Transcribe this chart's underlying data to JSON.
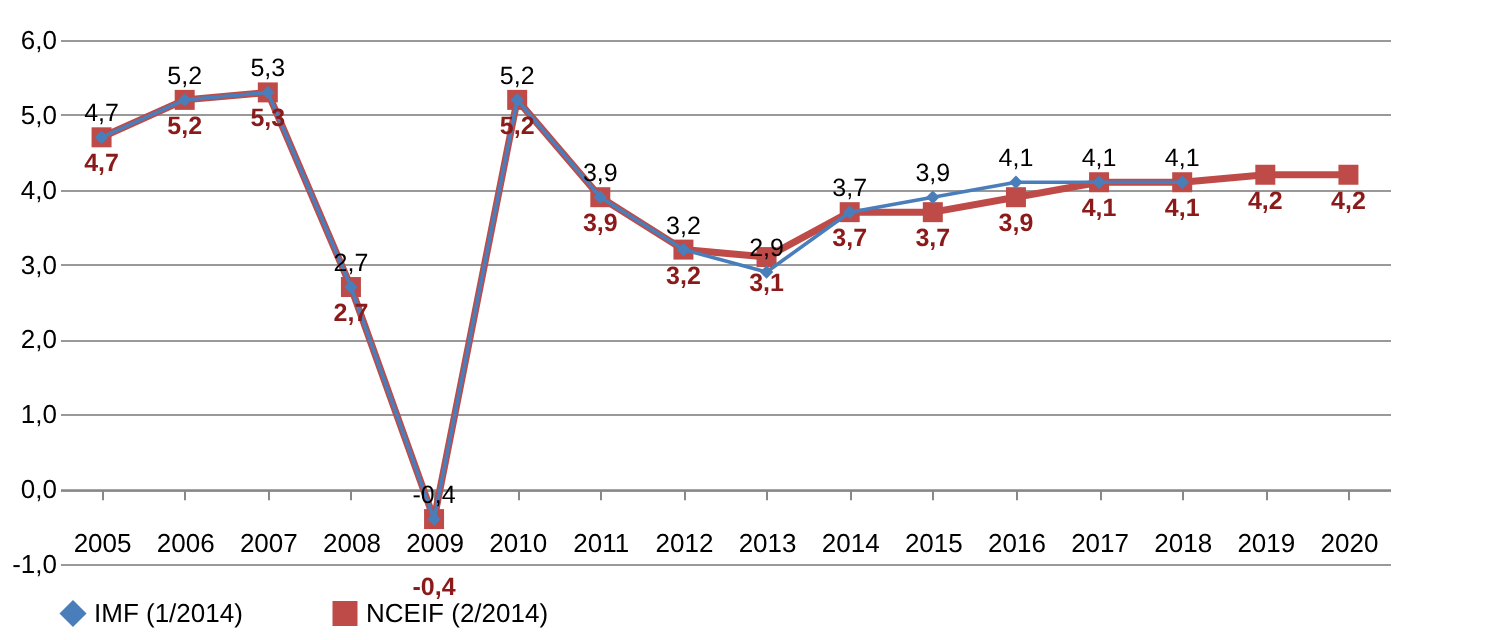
{
  "chart_data": {
    "type": "line",
    "categories": [
      "2005",
      "2006",
      "2007",
      "2008",
      "2009",
      "2010",
      "2011",
      "2012",
      "2013",
      "2014",
      "2015",
      "2016",
      "2017",
      "2018",
      "2019",
      "2020"
    ],
    "ylim": [
      -1,
      6
    ],
    "yticks": [
      {
        "value": -1,
        "label": "-1,0"
      },
      {
        "value": 0,
        "label": "0,0"
      },
      {
        "value": 1,
        "label": "1,0"
      },
      {
        "value": 2,
        "label": "2,0"
      },
      {
        "value": 3,
        "label": "3,0"
      },
      {
        "value": 4,
        "label": "4,0"
      },
      {
        "value": 5,
        "label": "5,0"
      },
      {
        "value": 6,
        "label": "6,0"
      }
    ],
    "grid": "y",
    "legend": "bottom",
    "series": [
      {
        "name": "IMF (1/2014)",
        "color": "#4a7ebb",
        "marker": "diamond",
        "values": [
          4.7,
          5.2,
          5.3,
          2.7,
          -0.4,
          5.2,
          3.9,
          3.2,
          2.9,
          3.7,
          3.9,
          4.1,
          4.1,
          4.1,
          null,
          null
        ],
        "value_labels": [
          "4,7",
          "5,2",
          "5,3",
          "2,7",
          "-0,4",
          "5,2",
          "3,9",
          "3,2",
          "2,9",
          "3,7",
          "3,9",
          "4,1",
          "4,1",
          "4,1",
          null,
          null
        ]
      },
      {
        "name": "NCEIF (2/2014)",
        "color": "#be4b48",
        "marker": "square",
        "values": [
          4.7,
          5.2,
          5.3,
          2.7,
          -0.4,
          5.2,
          3.9,
          3.2,
          3.1,
          3.7,
          3.7,
          3.9,
          4.1,
          4.1,
          4.2,
          4.2
        ],
        "value_labels": [
          "4,7",
          "5,2",
          "5,3",
          "2,7",
          "-0,4",
          "5,2",
          "3,9",
          "3,2",
          "3,1",
          "3,7",
          "3,7",
          "3,9",
          "4,1",
          "4,1",
          "4,2",
          "4,2"
        ]
      }
    ]
  }
}
